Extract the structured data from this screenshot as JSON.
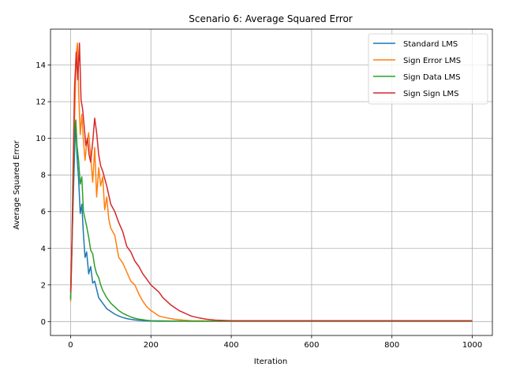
{
  "chart_data": {
    "type": "line",
    "title": "Scenario 6: Average Squared Error",
    "xlabel": "Iteration",
    "ylabel": "Average Squared Error",
    "xlim": [
      -50,
      1050
    ],
    "ylim": [
      -0.76,
      15.96
    ],
    "xticks": [
      0,
      200,
      400,
      600,
      800,
      1000
    ],
    "yticks": [
      0,
      2,
      4,
      6,
      8,
      10,
      12,
      14
    ],
    "grid": true,
    "legend": "top-right",
    "series": [
      {
        "name": "Standard LMS",
        "color": "#1f77b4",
        "x": [
          0,
          3,
          6,
          10,
          13,
          16,
          20,
          24,
          28,
          32,
          36,
          40,
          45,
          50,
          55,
          60,
          70,
          80,
          90,
          100,
          110,
          120,
          130,
          140,
          150,
          160,
          170,
          180,
          190,
          200,
          220,
          250,
          300,
          350,
          400,
          500,
          600,
          700,
          800,
          900,
          1000
        ],
        "y": [
          1.3,
          3.8,
          6.2,
          9.2,
          10.9,
          9.0,
          7.8,
          5.9,
          6.4,
          4.8,
          3.5,
          3.8,
          2.6,
          3.0,
          2.1,
          2.2,
          1.3,
          1.0,
          0.7,
          0.55,
          0.4,
          0.3,
          0.22,
          0.16,
          0.12,
          0.09,
          0.07,
          0.05,
          0.04,
          0.03,
          0.02,
          0.02,
          0.02,
          0.02,
          0.02,
          0.02,
          0.02,
          0.02,
          0.02,
          0.02,
          0.02
        ]
      },
      {
        "name": "Sign Error LMS",
        "color": "#ff7f0e",
        "x": [
          0,
          3,
          6,
          10,
          14,
          17,
          20,
          24,
          28,
          32,
          36,
          40,
          45,
          50,
          55,
          60,
          65,
          70,
          75,
          80,
          85,
          90,
          95,
          100,
          110,
          120,
          130,
          140,
          150,
          160,
          170,
          180,
          190,
          200,
          210,
          220,
          240,
          260,
          280,
          300,
          350,
          400,
          500,
          600,
          700,
          800,
          900,
          1000
        ],
        "y": [
          1.1,
          3.6,
          7.2,
          11.0,
          14.6,
          15.2,
          12.6,
          10.2,
          11.3,
          9.9,
          8.8,
          9.7,
          10.3,
          9.0,
          7.6,
          9.5,
          6.8,
          8.4,
          7.4,
          7.9,
          6.1,
          6.8,
          5.6,
          5.1,
          4.7,
          3.5,
          3.2,
          2.7,
          2.2,
          2.0,
          1.5,
          1.1,
          0.8,
          0.6,
          0.45,
          0.3,
          0.2,
          0.12,
          0.08,
          0.05,
          0.03,
          0.03,
          0.03,
          0.03,
          0.03,
          0.03,
          0.03,
          0.03
        ]
      },
      {
        "name": "Sign Data LMS",
        "color": "#2ca02c",
        "x": [
          0,
          3,
          6,
          10,
          13,
          16,
          20,
          24,
          28,
          32,
          36,
          40,
          45,
          50,
          55,
          60,
          65,
          70,
          75,
          80,
          90,
          100,
          110,
          120,
          130,
          140,
          150,
          160,
          170,
          180,
          190,
          200,
          220,
          250,
          300,
          350,
          400,
          500,
          600,
          700,
          800,
          900,
          1000
        ],
        "y": [
          1.2,
          3.9,
          6.8,
          10.4,
          11.0,
          9.6,
          8.8,
          7.5,
          7.9,
          6.0,
          5.6,
          5.2,
          4.6,
          3.9,
          3.7,
          3.0,
          2.6,
          2.4,
          2.0,
          1.7,
          1.3,
          1.0,
          0.8,
          0.6,
          0.45,
          0.35,
          0.25,
          0.18,
          0.13,
          0.1,
          0.07,
          0.05,
          0.04,
          0.03,
          0.02,
          0.02,
          0.02,
          0.02,
          0.02,
          0.02,
          0.02,
          0.02,
          0.02
        ]
      },
      {
        "name": "Sign Sign LMS",
        "color": "#d62728",
        "x": [
          0,
          3,
          6,
          10,
          14,
          18,
          22,
          26,
          30,
          34,
          38,
          42,
          46,
          50,
          55,
          60,
          65,
          70,
          75,
          80,
          90,
          100,
          110,
          120,
          130,
          140,
          150,
          160,
          170,
          180,
          190,
          200,
          210,
          220,
          230,
          240,
          250,
          260,
          270,
          280,
          290,
          300,
          320,
          340,
          360,
          400,
          500,
          600,
          700,
          800,
          900,
          1000
        ],
        "y": [
          1.6,
          4.0,
          8.0,
          12.8,
          14.7,
          13.2,
          15.2,
          12.1,
          11.6,
          10.6,
          9.6,
          10.0,
          9.1,
          8.7,
          9.8,
          11.1,
          10.3,
          9.1,
          8.5,
          8.2,
          7.4,
          6.4,
          6.0,
          5.4,
          4.9,
          4.1,
          3.8,
          3.3,
          3.0,
          2.6,
          2.3,
          2.0,
          1.8,
          1.6,
          1.3,
          1.1,
          0.9,
          0.75,
          0.6,
          0.5,
          0.4,
          0.3,
          0.2,
          0.12,
          0.08,
          0.05,
          0.05,
          0.05,
          0.05,
          0.05,
          0.05,
          0.05
        ]
      }
    ]
  }
}
